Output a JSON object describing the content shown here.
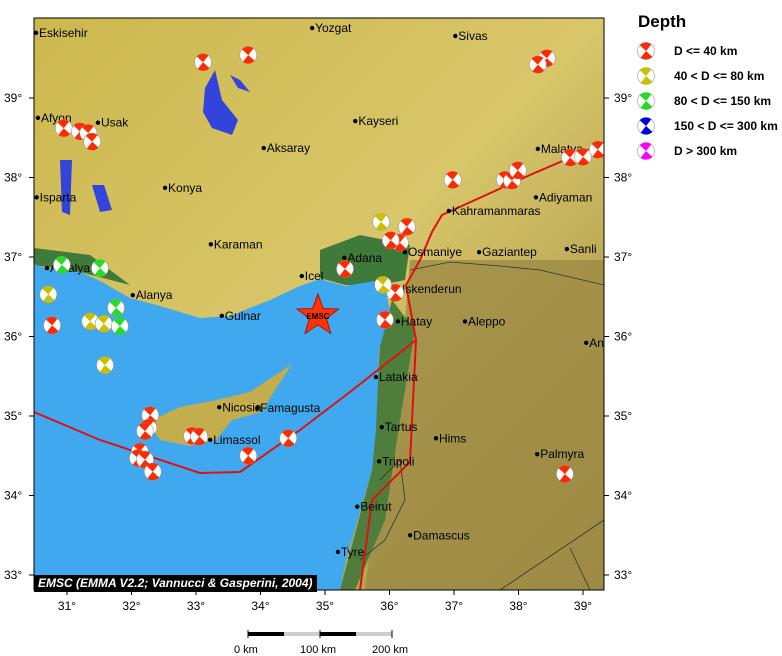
{
  "legend": {
    "title": "Depth",
    "items": [
      {
        "label": "D <= 40 km",
        "color": "#ff2a00"
      },
      {
        "label": "40 < D <= 80 km",
        "color": "#c8c000"
      },
      {
        "label": "80 < D <= 150 km",
        "color": "#22dd22"
      },
      {
        "label": "150 < D <= 300 km",
        "color": "#0000dd"
      },
      {
        "label": "D > 300 km",
        "color": "#ff00ff"
      }
    ]
  },
  "credit": "EMSC (EMMA V2.2; Vannucci & Gasperini, 2004)",
  "epicenter": {
    "label": "EMSC",
    "lon": 34.89,
    "lat": 36.26,
    "color": "#ff3300"
  },
  "axes": {
    "lon_ticks": [
      "31°",
      "32°",
      "33°",
      "34°",
      "35°",
      "36°",
      "37°",
      "38°",
      "39°"
    ],
    "lat_ticks": [
      "39°",
      "38°",
      "37°",
      "36°",
      "35°",
      "34°",
      "33°"
    ]
  },
  "scale_bar": {
    "labels": [
      "0 km",
      "100 km",
      "200 km"
    ]
  },
  "colors": {
    "sea": "#3fa8ee",
    "land": "#c9b34c",
    "lowland": "#3f7a3a",
    "fault": "#e01010",
    "lake": "#3344dd"
  },
  "cities": [
    {
      "name": "Eskisehir",
      "lon": 30.52,
      "lat": 39.82
    },
    {
      "name": "Yozgat",
      "lon": 34.8,
      "lat": 39.88
    },
    {
      "name": "Sivas",
      "lon": 37.02,
      "lat": 39.78
    },
    {
      "name": "Afyon",
      "lon": 30.55,
      "lat": 38.75
    },
    {
      "name": "Usak",
      "lon": 31.48,
      "lat": 38.69
    },
    {
      "name": "Kayseri",
      "lon": 35.47,
      "lat": 38.71
    },
    {
      "name": "Aksaray",
      "lon": 34.05,
      "lat": 38.37
    },
    {
      "name": "Malatya",
      "lon": 38.3,
      "lat": 38.36
    },
    {
      "name": "Konya",
      "lon": 32.52,
      "lat": 37.87
    },
    {
      "name": "Isparta",
      "lon": 30.53,
      "lat": 37.75
    },
    {
      "name": "Adiyaman",
      "lon": 38.27,
      "lat": 37.75
    },
    {
      "name": "Kahramanmaras",
      "lon": 36.92,
      "lat": 37.58
    },
    {
      "name": "Karaman",
      "lon": 33.23,
      "lat": 37.16
    },
    {
      "name": "Osmaniye",
      "lon": 36.24,
      "lat": 37.06
    },
    {
      "name": "Gaziantep",
      "lon": 37.39,
      "lat": 37.06
    },
    {
      "name": "Sanli",
      "lon": 38.75,
      "lat": 37.1
    },
    {
      "name": "Adana",
      "lon": 35.3,
      "lat": 36.99
    },
    {
      "name": "Icel",
      "lon": 34.64,
      "lat": 36.76
    },
    {
      "name": "Antalya",
      "lon": 30.69,
      "lat": 36.86
    },
    {
      "name": "Alanya",
      "lon": 32.02,
      "lat": 36.52
    },
    {
      "name": "Iskenderun",
      "lon": 36.15,
      "lat": 36.6
    },
    {
      "name": "Gulnar",
      "lon": 33.4,
      "lat": 36.26
    },
    {
      "name": "Hatay",
      "lon": 36.13,
      "lat": 36.19
    },
    {
      "name": "Aleppo",
      "lon": 37.17,
      "lat": 36.19
    },
    {
      "name": "An",
      "lon": 39.05,
      "lat": 35.92
    },
    {
      "name": "Latakia",
      "lon": 35.79,
      "lat": 35.49
    },
    {
      "name": "Nicosia",
      "lon": 33.36,
      "lat": 35.11
    },
    {
      "name": "Famagusta",
      "lon": 33.95,
      "lat": 35.1
    },
    {
      "name": "Tartus",
      "lon": 35.88,
      "lat": 34.86
    },
    {
      "name": "Hims",
      "lon": 36.72,
      "lat": 34.72
    },
    {
      "name": "Limassol",
      "lon": 33.22,
      "lat": 34.7
    },
    {
      "name": "Palmyra",
      "lon": 38.29,
      "lat": 34.52
    },
    {
      "name": "Tripoli",
      "lon": 35.84,
      "lat": 34.43
    },
    {
      "name": "Beirut",
      "lon": 35.5,
      "lat": 33.86
    },
    {
      "name": "Damascus",
      "lon": 36.32,
      "lat": 33.5
    },
    {
      "name": "Tyre",
      "lon": 35.2,
      "lat": 33.29
    }
  ],
  "events": [
    {
      "lon": 33.11,
      "lat": 39.45,
      "depth": 0
    },
    {
      "lon": 33.81,
      "lat": 39.54,
      "depth": 0
    },
    {
      "lon": 30.95,
      "lat": 38.62,
      "depth": 0
    },
    {
      "lon": 31.2,
      "lat": 38.58,
      "depth": 0
    },
    {
      "lon": 31.33,
      "lat": 38.56,
      "depth": 0
    },
    {
      "lon": 31.39,
      "lat": 38.45,
      "depth": 0
    },
    {
      "lon": 38.44,
      "lat": 39.5,
      "depth": 0
    },
    {
      "lon": 38.3,
      "lat": 39.42,
      "depth": 0
    },
    {
      "lon": 36.98,
      "lat": 37.97,
      "depth": 0
    },
    {
      "lon": 37.79,
      "lat": 37.97,
      "depth": 0
    },
    {
      "lon": 37.9,
      "lat": 37.96,
      "depth": 0
    },
    {
      "lon": 37.99,
      "lat": 38.09,
      "depth": 0
    },
    {
      "lon": 38.8,
      "lat": 38.25,
      "depth": 0
    },
    {
      "lon": 39.0,
      "lat": 38.26,
      "depth": 0
    },
    {
      "lon": 39.23,
      "lat": 38.35,
      "depth": 0
    },
    {
      "lon": 36.27,
      "lat": 37.38,
      "depth": 0
    },
    {
      "lon": 36.16,
      "lat": 37.18,
      "depth": 0
    },
    {
      "lon": 36.02,
      "lat": 37.21,
      "depth": 0
    },
    {
      "lon": 35.31,
      "lat": 36.85,
      "depth": 0
    },
    {
      "lon": 36.09,
      "lat": 36.55,
      "depth": 0
    },
    {
      "lon": 35.93,
      "lat": 36.21,
      "depth": 0
    },
    {
      "lon": 32.29,
      "lat": 35.01,
      "depth": 0
    },
    {
      "lon": 32.26,
      "lat": 34.85,
      "depth": 0
    },
    {
      "lon": 32.21,
      "lat": 34.81,
      "depth": 0
    },
    {
      "lon": 32.94,
      "lat": 34.75,
      "depth": 0
    },
    {
      "lon": 33.05,
      "lat": 34.74,
      "depth": 0
    },
    {
      "lon": 33.81,
      "lat": 34.5,
      "depth": 0
    },
    {
      "lon": 34.43,
      "lat": 34.72,
      "depth": 0
    },
    {
      "lon": 32.13,
      "lat": 34.55,
      "depth": 0
    },
    {
      "lon": 32.1,
      "lat": 34.47,
      "depth": 0
    },
    {
      "lon": 32.21,
      "lat": 34.45,
      "depth": 0
    },
    {
      "lon": 32.33,
      "lat": 34.3,
      "depth": 0
    },
    {
      "lon": 30.77,
      "lat": 36.14,
      "depth": 0
    },
    {
      "lon": 38.72,
      "lat": 34.27,
      "depth": 0
    },
    {
      "lon": 35.87,
      "lat": 37.44,
      "depth": 1
    },
    {
      "lon": 30.71,
      "lat": 36.53,
      "depth": 1
    },
    {
      "lon": 35.9,
      "lat": 36.65,
      "depth": 1
    },
    {
      "lon": 31.36,
      "lat": 36.19,
      "depth": 1
    },
    {
      "lon": 31.57,
      "lat": 36.16,
      "depth": 1
    },
    {
      "lon": 31.59,
      "lat": 35.64,
      "depth": 1
    },
    {
      "lon": 30.92,
      "lat": 36.9,
      "depth": 2
    },
    {
      "lon": 31.51,
      "lat": 36.86,
      "depth": 2
    },
    {
      "lon": 31.76,
      "lat": 36.36,
      "depth": 2
    },
    {
      "lon": 31.82,
      "lat": 36.13,
      "depth": 2
    }
  ]
}
